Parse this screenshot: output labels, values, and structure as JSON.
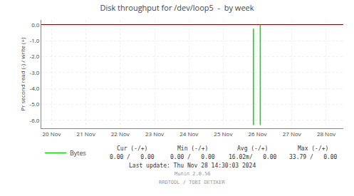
{
  "chart_data": {
    "type": "line",
    "title": "Disk throughput for /dev/loop5  -  by week",
    "y_label": "Pr second read (-) / write (+)",
    "xlim": [
      -0.3,
      8.5
    ],
    "xticks": [
      {
        "value": 0,
        "label": "20 Nov"
      },
      {
        "value": 1,
        "label": "21 Nov"
      },
      {
        "value": 2,
        "label": "22 Nov"
      },
      {
        "value": 3,
        "label": "23 Nov"
      },
      {
        "value": 4,
        "label": "24 Nov"
      },
      {
        "value": 5,
        "label": "25 Nov"
      },
      {
        "value": 6,
        "label": "26 Nov"
      },
      {
        "value": 7,
        "label": "27 Nov"
      },
      {
        "value": 8,
        "label": "28 Nov"
      }
    ],
    "ylim": [
      -6.5,
      0.3
    ],
    "yticks": [
      {
        "value": 0.0,
        "label": "0.0"
      },
      {
        "value": -1.0,
        "label": "-1.0"
      },
      {
        "value": -2.0,
        "label": "-2.0"
      },
      {
        "value": -3.0,
        "label": "-3.0"
      },
      {
        "value": -4.0,
        "label": "-4.0"
      },
      {
        "value": -5.0,
        "label": "-5.0"
      },
      {
        "value": -6.0,
        "label": "-6.0"
      }
    ],
    "grid": true,
    "legend": "bottom left",
    "series": [
      {
        "name": "Bytes",
        "color": "#00dd00",
        "x": [
          5.88,
          5.88,
          null,
          6.08,
          6.08
        ],
        "values": [
          -0.25,
          -6.3,
          null,
          0.0,
          -6.3
        ]
      }
    ],
    "annotations": [
      [
        "Cur (-/+)",
        "Min (-/+)",
        "Avg (-/+)",
        "Max (-/+)"
      ],
      [
        "0.00 /   0.00",
        "0.00 /   0.00",
        "16.02m/   0.00",
        "33.79 /   0.00"
      ],
      [
        "Last update: Thu Nov 28 14:30:03 2024"
      ],
      [
        "Munin 2.0.56"
      ],
      [
        "RRDTOOL / TOBI OETIKER"
      ]
    ]
  }
}
